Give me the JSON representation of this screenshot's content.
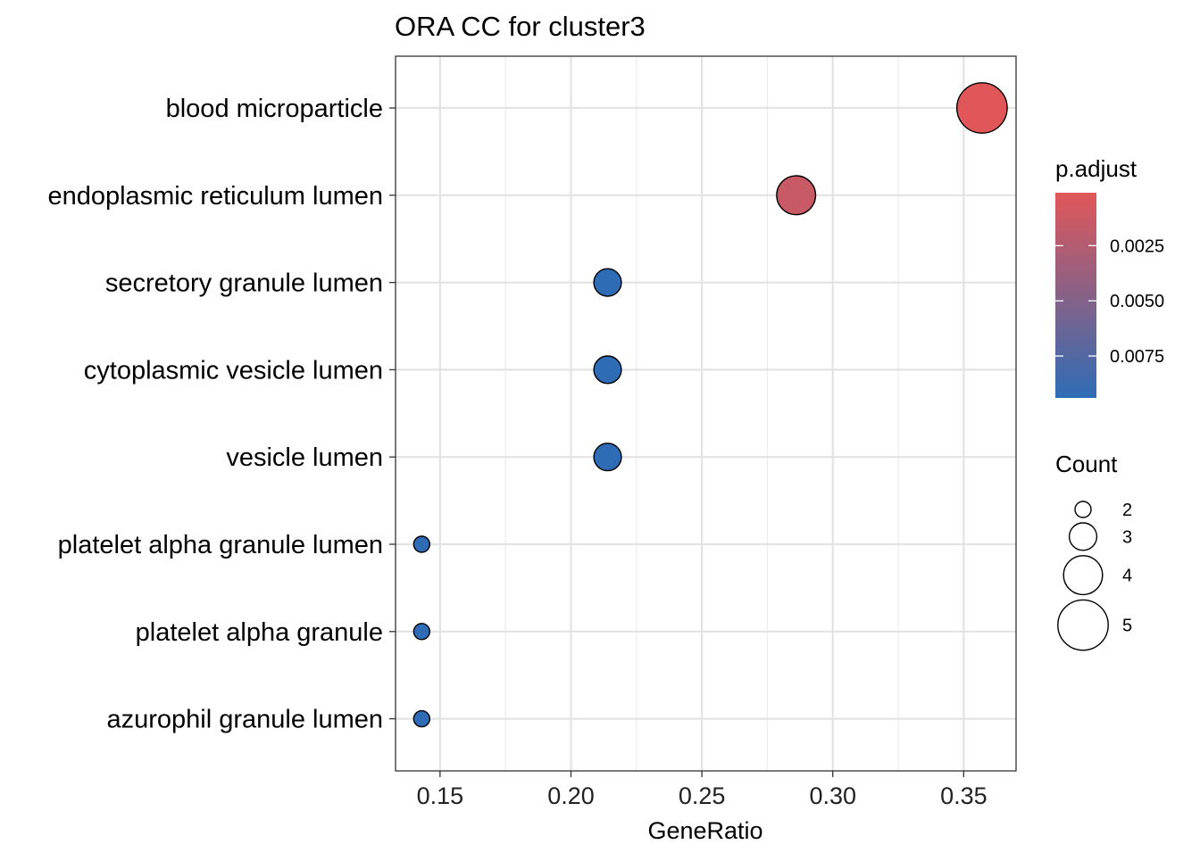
{
  "chart_data": {
    "type": "scatter",
    "title": "ORA CC for cluster3",
    "xlabel": "GeneRatio",
    "ylabel": "",
    "xlim": [
      0.133,
      0.37
    ],
    "x_ticks": [
      "0.15",
      "0.20",
      "0.25",
      "0.30",
      "0.35"
    ],
    "x_tick_values": [
      0.15,
      0.2,
      0.25,
      0.3,
      0.35
    ],
    "grid": true,
    "categories": [
      "blood microparticle",
      "endoplasmic reticulum lumen",
      "secretory granule lumen",
      "cytoplasmic vesicle lumen",
      "vesicle lumen",
      "platelet alpha granule lumen",
      "platelet alpha granule",
      "azurophil granule lumen"
    ],
    "points": [
      {
        "term": "blood microparticle",
        "gene_ratio": 0.357,
        "count": 5,
        "p_adjust": 0.0001
      },
      {
        "term": "endoplasmic reticulum lumen",
        "gene_ratio": 0.286,
        "count": 4,
        "p_adjust": 0.0014
      },
      {
        "term": "secretory granule lumen",
        "gene_ratio": 0.214,
        "count": 3,
        "p_adjust": 0.0094
      },
      {
        "term": "cytoplasmic vesicle lumen",
        "gene_ratio": 0.214,
        "count": 3,
        "p_adjust": 0.0094
      },
      {
        "term": "vesicle lumen",
        "gene_ratio": 0.214,
        "count": 3,
        "p_adjust": 0.0094
      },
      {
        "term": "platelet alpha granule lumen",
        "gene_ratio": 0.143,
        "count": 2,
        "p_adjust": 0.0094
      },
      {
        "term": "platelet alpha granule",
        "gene_ratio": 0.143,
        "count": 2,
        "p_adjust": 0.0094
      },
      {
        "term": "azurophil granule lumen",
        "gene_ratio": 0.143,
        "count": 2,
        "p_adjust": 0.0094
      }
    ],
    "color_legend": {
      "title": "p.adjust",
      "labels": [
        "0.0025",
        "0.0050",
        "0.0075"
      ],
      "values": [
        0.0025,
        0.005,
        0.0075
      ],
      "range": [
        0.0001,
        0.0094
      ],
      "low_color": "#E15759",
      "high_color": "#2E6CB5"
    },
    "size_legend": {
      "title": "Count",
      "labels": [
        "2",
        "3",
        "4",
        "5"
      ],
      "values": [
        2,
        3,
        4,
        5
      ]
    },
    "legend_position": "right"
  }
}
